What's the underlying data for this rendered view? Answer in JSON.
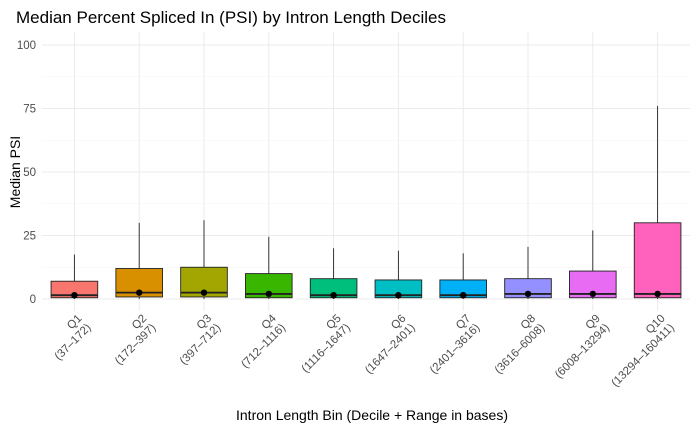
{
  "chart_data": {
    "type": "box",
    "title": "Median Percent Spliced In (PSI) by Intron Length Deciles",
    "xlabel": "Intron Length Bin (Decile + Range in bases)",
    "ylabel": "Median PSI",
    "ylim": [
      0,
      100
    ],
    "yticks": [
      0,
      25,
      50,
      75,
      100
    ],
    "grid": true,
    "legend": "none",
    "categories": [
      {
        "decile": "Q1",
        "range": "(37–172)"
      },
      {
        "decile": "Q2",
        "range": "(172–397)"
      },
      {
        "decile": "Q3",
        "range": "(397–712)"
      },
      {
        "decile": "Q4",
        "range": "(712–1116)"
      },
      {
        "decile": "Q5",
        "range": "(1116–1647)"
      },
      {
        "decile": "Q6",
        "range": "(1647–2401)"
      },
      {
        "decile": "Q7",
        "range": "(2401–3616)"
      },
      {
        "decile": "Q8",
        "range": "(3616–6008)"
      },
      {
        "decile": "Q9",
        "range": "(6008–13294)"
      },
      {
        "decile": "Q10",
        "range": "(13294–160411)"
      }
    ],
    "boxes": [
      {
        "lower_whisker": 0,
        "q1": 0.5,
        "median": 1.5,
        "q3": 7,
        "upper_whisker": 17.5,
        "mean": 1.5,
        "color": "#F8766D"
      },
      {
        "lower_whisker": 0,
        "q1": 0.8,
        "median": 2.5,
        "q3": 12,
        "upper_whisker": 30,
        "mean": 2.5,
        "color": "#D89000"
      },
      {
        "lower_whisker": 0,
        "q1": 0.8,
        "median": 2.5,
        "q3": 12.5,
        "upper_whisker": 31,
        "mean": 2.5,
        "color": "#A3A500"
      },
      {
        "lower_whisker": 0,
        "q1": 0.5,
        "median": 2,
        "q3": 10,
        "upper_whisker": 24.5,
        "mean": 2,
        "color": "#39B600"
      },
      {
        "lower_whisker": 0,
        "q1": 0.5,
        "median": 1.5,
        "q3": 8,
        "upper_whisker": 20,
        "mean": 1.5,
        "color": "#00BF7D"
      },
      {
        "lower_whisker": 0,
        "q1": 0.5,
        "median": 1.5,
        "q3": 7.5,
        "upper_whisker": 19,
        "mean": 1.5,
        "color": "#00BFC4"
      },
      {
        "lower_whisker": 0,
        "q1": 0.5,
        "median": 1.5,
        "q3": 7.5,
        "upper_whisker": 18,
        "mean": 1.5,
        "color": "#00B0F6"
      },
      {
        "lower_whisker": 0,
        "q1": 0.5,
        "median": 2,
        "q3": 8,
        "upper_whisker": 20.5,
        "mean": 2,
        "color": "#9590FF"
      },
      {
        "lower_whisker": 0,
        "q1": 0.5,
        "median": 2,
        "q3": 11,
        "upper_whisker": 27,
        "mean": 2,
        "color": "#E76BF3"
      },
      {
        "lower_whisker": 0,
        "q1": 0.5,
        "median": 2,
        "q3": 30,
        "upper_whisker": 76,
        "mean": 2,
        "color": "#FF62BC"
      }
    ]
  }
}
